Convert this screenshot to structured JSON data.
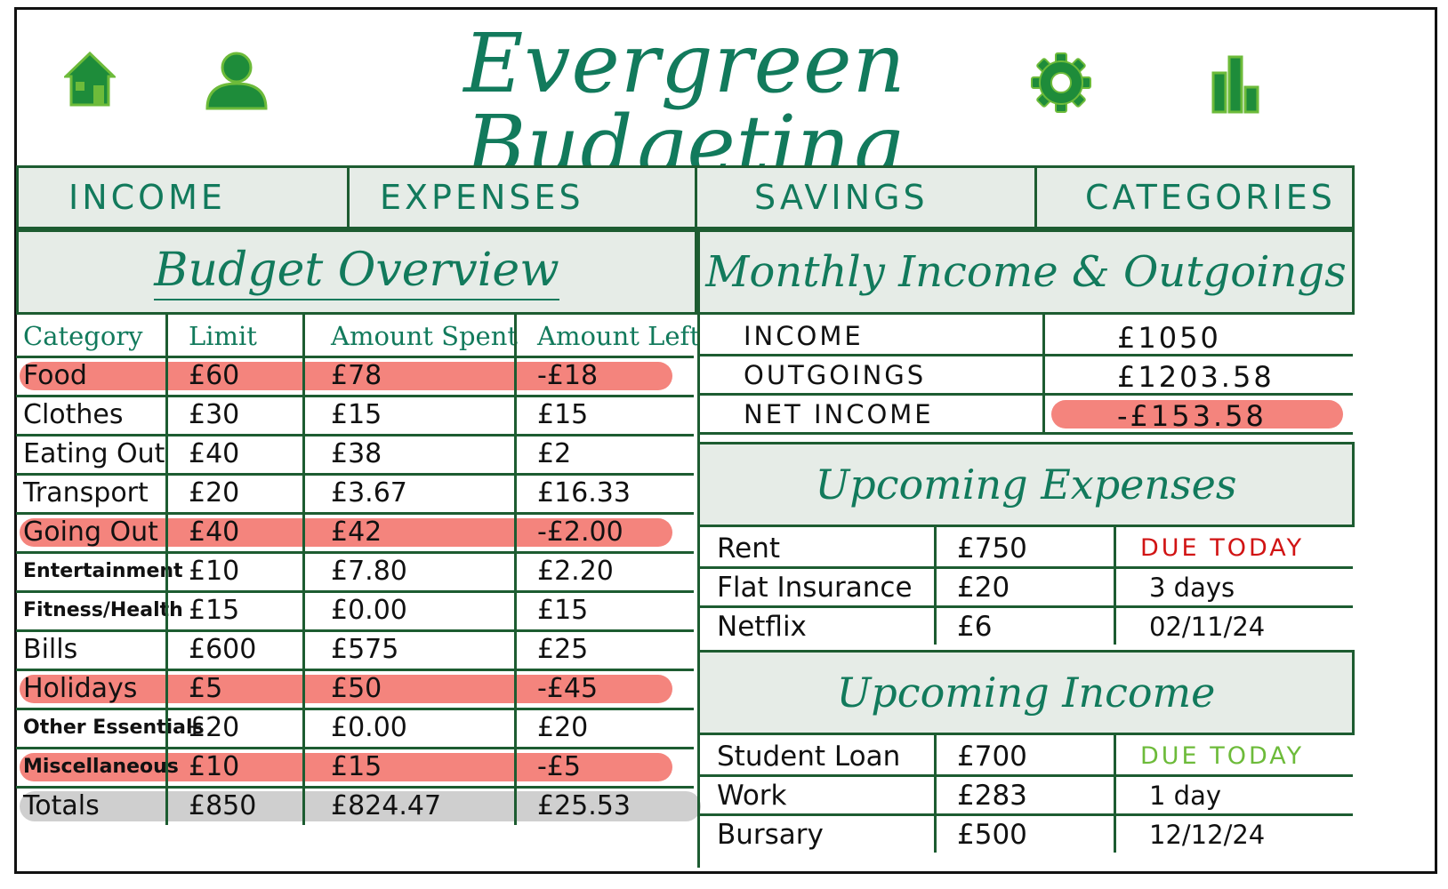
{
  "app_title": "Evergreen Budgeting",
  "icons": [
    "home-icon",
    "user-icon",
    "gear-icon",
    "bar-chart-icon"
  ],
  "colors": {
    "accent": "#127a5c",
    "border": "#1d5c31",
    "panel_bg": "#e6ece7",
    "overspent": "#f4847d",
    "totals_bg": "#cfcfcf",
    "due_red": "#d11414",
    "due_green": "#6dbb3a"
  },
  "tabs": [
    "INCOME",
    "EXPENSES",
    "SAVINGS",
    "CATEGORIES"
  ],
  "budget_overview": {
    "title": "Budget Overview",
    "columns": [
      "Category",
      "Limit",
      "Amount Spent",
      "Amount Left"
    ],
    "rows": [
      {
        "category": "Food",
        "limit": "£60",
        "spent": "£78",
        "left": "-£18",
        "over": true
      },
      {
        "category": "Clothes",
        "limit": "£30",
        "spent": "£15",
        "left": "£15",
        "over": false
      },
      {
        "category": "Eating Out",
        "limit": "£40",
        "spent": "£38",
        "left": "£2",
        "over": false
      },
      {
        "category": "Transport",
        "limit": "£20",
        "spent": "£3.67",
        "left": "£16.33",
        "over": false
      },
      {
        "category": "Going Out",
        "limit": "£40",
        "spent": "£42",
        "left": "-£2.00",
        "over": true
      },
      {
        "category": "Entertainment",
        "limit": "£10",
        "spent": "£7.80",
        "left": "£2.20",
        "over": false
      },
      {
        "category": "Fitness/Health",
        "limit": "£15",
        "spent": "£0.00",
        "left": "£15",
        "over": false
      },
      {
        "category": "Bills",
        "limit": "£600",
        "spent": "£575",
        "left": "£25",
        "over": false
      },
      {
        "category": "Holidays",
        "limit": "£5",
        "spent": "£50",
        "left": "-£45",
        "over": true
      },
      {
        "category": "Other Essentials",
        "limit": "£20",
        "spent": "£0.00",
        "left": "£20",
        "over": false
      },
      {
        "category": "Miscellaneous",
        "limit": "£10",
        "spent": "£15",
        "left": "-£5",
        "over": true
      }
    ],
    "totals": {
      "label": "Totals",
      "limit": "£850",
      "spent": "£824.47",
      "left": "£25.53"
    }
  },
  "monthly": {
    "title": "Monthly Income & Outgoings",
    "rows": [
      {
        "label": "INCOME",
        "value": "£1050"
      },
      {
        "label": "OUTGOINGS",
        "value": "£1203.58"
      },
      {
        "label": "NET INCOME",
        "value": "-£153.58"
      }
    ]
  },
  "upcoming_expenses": {
    "title": "Upcoming Expenses",
    "rows": [
      {
        "name": "Rent",
        "amount": "£750",
        "due": "DUE TODAY"
      },
      {
        "name": "Flat Insurance",
        "amount": "£20",
        "due": "3 days"
      },
      {
        "name": "Netflix",
        "amount": "£6",
        "due": "02/11/24"
      }
    ]
  },
  "upcoming_income": {
    "title": "Upcoming Income",
    "rows": [
      {
        "name": "Student Loan",
        "amount": "£700",
        "due": "DUE TODAY"
      },
      {
        "name": "Work",
        "amount": "£283",
        "due": "1 day"
      },
      {
        "name": "Bursary",
        "amount": "£500",
        "due": "12/12/24"
      }
    ]
  }
}
